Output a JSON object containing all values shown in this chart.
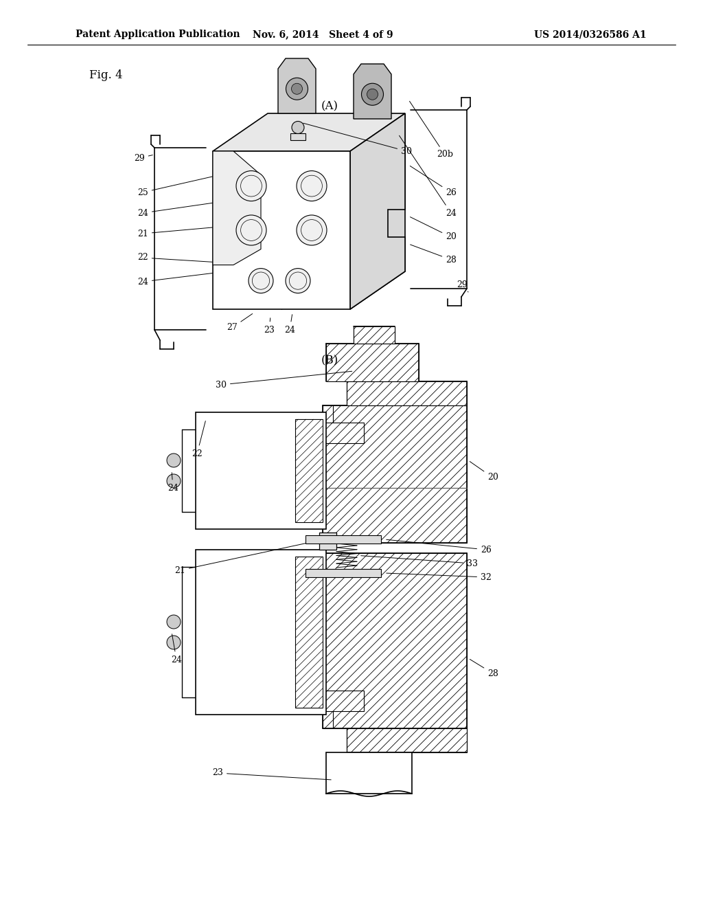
{
  "background_color": "#ffffff",
  "header_left": "Patent Application Publication",
  "header_center": "Nov. 6, 2014   Sheet 4 of 9",
  "header_right": "US 2014/0326586 A1",
  "fig_label": "Fig. 4",
  "label_A": "(A)",
  "label_B": "(B)",
  "header_fontsize": 10.5,
  "fig_label_fontsize": 12,
  "section_label_fontsize": 12,
  "annotation_fontsize": 9,
  "line_color": "#000000"
}
